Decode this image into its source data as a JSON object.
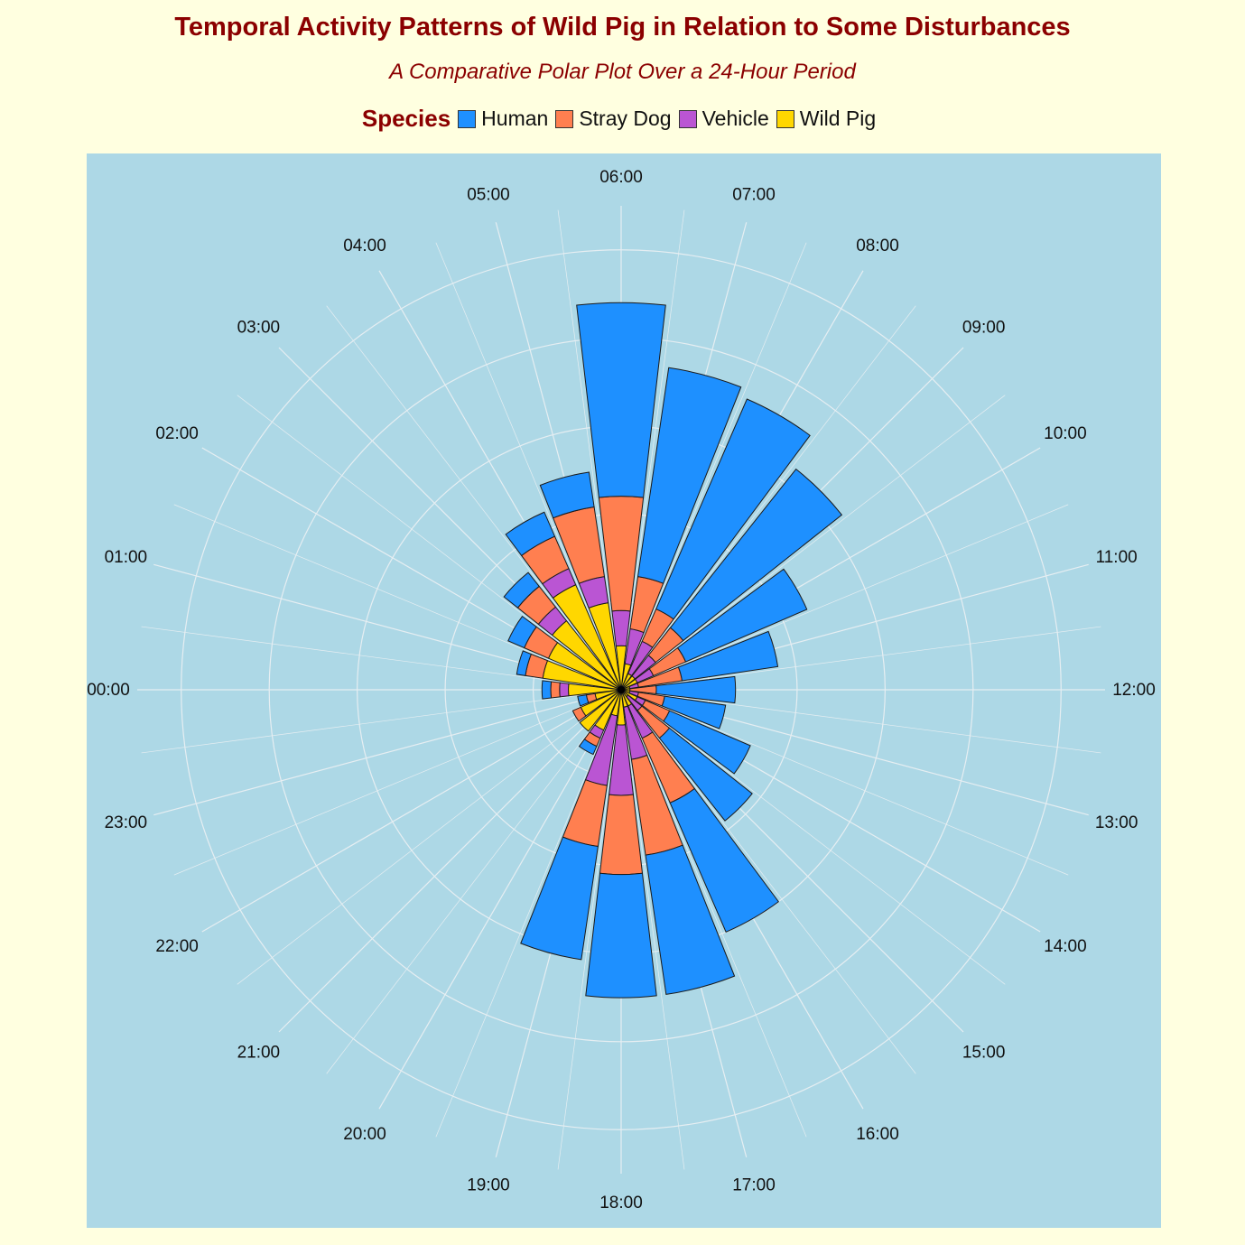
{
  "title": "Temporal Activity Patterns of Wild Pig in Relation to Some Disturbances",
  "subtitle": "A Comparative Polar Plot Over a 24-Hour Period",
  "legend": {
    "title": "Species",
    "items": [
      {
        "label": "Human",
        "color": "#1E90FF"
      },
      {
        "label": "Stray Dog",
        "color": "#FF7F50"
      },
      {
        "label": "Vehicle",
        "color": "#BA55D3"
      },
      {
        "label": "Wild Pig",
        "color": "#FFD700"
      }
    ]
  },
  "chart_data": {
    "type": "bar",
    "layout": "polar-stacked",
    "title": "Temporal Activity Patterns of Wild Pig in Relation to Some Disturbances",
    "subtitle": "A Comparative Polar Plot Over a 24-Hour Period",
    "legend_title": "Species",
    "legend_position": "top",
    "grid": true,
    "categories": [
      "00:00",
      "01:00",
      "02:00",
      "03:00",
      "04:00",
      "05:00",
      "06:00",
      "07:00",
      "08:00",
      "09:00",
      "10:00",
      "11:00",
      "12:00",
      "13:00",
      "14:00",
      "15:00",
      "16:00",
      "17:00",
      "18:00",
      "19:00",
      "20:00",
      "21:00",
      "22:00",
      "23:00"
    ],
    "series": [
      {
        "name": "Wild Pig",
        "color": "#FFD700",
        "values": [
          0.06,
          0.09,
          0.09,
          0.1,
          0.13,
          0.1,
          0.05,
          0.03,
          0.02,
          0.02,
          0.02,
          0.01,
          0.01,
          0.01,
          0.02,
          0.01,
          0.02,
          0.02,
          0.04,
          0.03,
          0.05,
          0.06,
          0.05,
          0.03
        ]
      },
      {
        "name": "Vehicle",
        "color": "#BA55D3",
        "values": [
          0.01,
          0.0,
          0.0,
          0.02,
          0.02,
          0.03,
          0.04,
          0.04,
          0.04,
          0.03,
          0.02,
          0.01,
          0.0,
          0.01,
          0.01,
          0.02,
          0.04,
          0.06,
          0.08,
          0.08,
          0.01,
          0.0,
          0.0,
          0.0
        ]
      },
      {
        "name": "Stray Dog",
        "color": "#FF7F50",
        "values": [
          0.01,
          0.02,
          0.03,
          0.03,
          0.04,
          0.08,
          0.13,
          0.06,
          0.04,
          0.04,
          0.04,
          0.05,
          0.03,
          0.03,
          0.03,
          0.04,
          0.08,
          0.11,
          0.09,
          0.07,
          0.01,
          0.0,
          0.01,
          0.01
        ]
      },
      {
        "name": "Human",
        "color": "#1E90FF",
        "values": [
          0.01,
          0.01,
          0.02,
          0.02,
          0.03,
          0.04,
          0.22,
          0.24,
          0.26,
          0.23,
          0.15,
          0.11,
          0.09,
          0.07,
          0.1,
          0.12,
          0.16,
          0.16,
          0.14,
          0.13,
          0.01,
          0.0,
          0.0,
          0.01
        ]
      }
    ],
    "r_range": [
      0,
      0.55
    ]
  }
}
